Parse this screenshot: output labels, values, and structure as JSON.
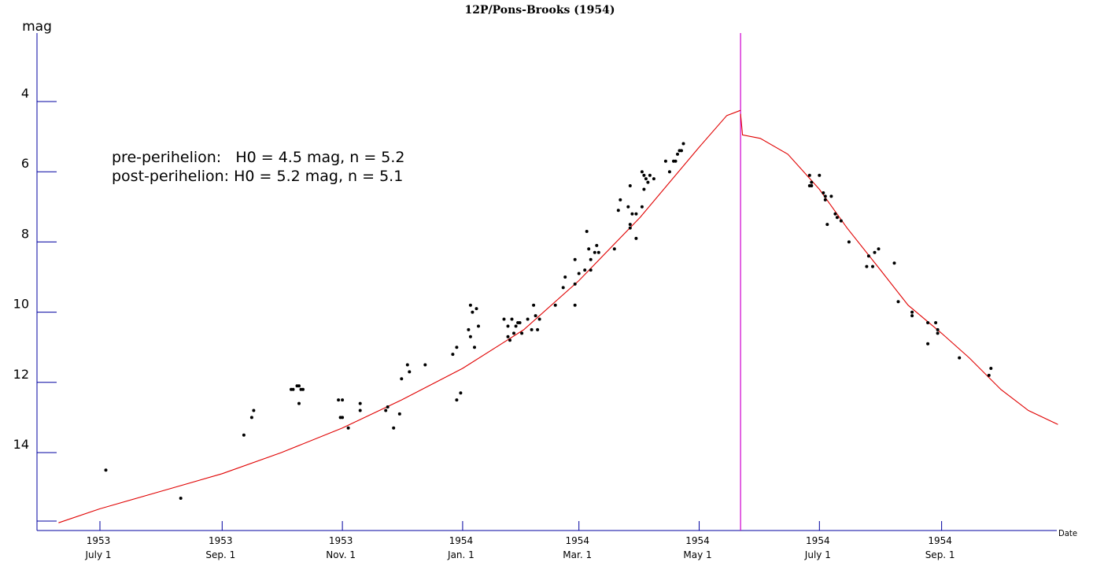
{
  "chart_data": {
    "type": "scatter",
    "title": "12P/Pons-Brooks (1954)",
    "ylabel": "mag",
    "xlabel": "Date",
    "y_inverted": true,
    "ylim": [
      2.0,
      16.2
    ],
    "y_ticks": [
      {
        "value": 4,
        "label": "4"
      },
      {
        "value": 6,
        "label": "6"
      },
      {
        "value": 8,
        "label": "8"
      },
      {
        "value": 10,
        "label": "10"
      },
      {
        "value": 12,
        "label": "12"
      },
      {
        "value": 14,
        "label": "14"
      }
    ],
    "x_range": [
      "1953-06-01",
      "1954-10-31"
    ],
    "x_ticks": [
      {
        "date": "1953-07-01",
        "year": "1953",
        "label": "July 1"
      },
      {
        "date": "1953-09-01",
        "year": "1953",
        "label": "Sep. 1"
      },
      {
        "date": "1953-11-01",
        "year": "1953",
        "label": "Nov. 1"
      },
      {
        "date": "1954-01-01",
        "year": "1954",
        "label": "Jan. 1"
      },
      {
        "date": "1954-03-01",
        "year": "1954",
        "label": "Mar. 1"
      },
      {
        "date": "1954-05-01",
        "year": "1954",
        "label": "May 1"
      },
      {
        "date": "1954-07-01",
        "year": "1954",
        "label": "July 1"
      },
      {
        "date": "1954-09-01",
        "year": "1954",
        "label": "Sep. 1"
      }
    ],
    "annotations": [
      "pre-perihelion:   H0 = 4.5 mag, n = 5.2",
      "post-perihelion: H0 = 5.2 mag, n = 5.1"
    ],
    "perihelion_date": "1954-05-22",
    "colors": {
      "observations": "#000000",
      "model": "#e00000",
      "perihelion": "#d000d0",
      "axes": "#0000a0"
    },
    "series": [
      {
        "type": "scatter",
        "points": [
          [
            "1953-07-04",
            14.5
          ],
          [
            "1953-08-11",
            15.3
          ],
          [
            "1953-09-12",
            13.5
          ],
          [
            "1953-09-16",
            13.0
          ],
          [
            "1953-09-17",
            12.8
          ],
          [
            "1953-10-06",
            12.2
          ],
          [
            "1953-10-07",
            12.2
          ],
          [
            "1953-10-09",
            12.1
          ],
          [
            "1953-10-10",
            12.1
          ],
          [
            "1953-10-10",
            12.6
          ],
          [
            "1953-10-11",
            12.2
          ],
          [
            "1953-10-12",
            12.2
          ],
          [
            "1953-10-30",
            12.5
          ],
          [
            "1953-10-31",
            13.0
          ],
          [
            "1953-11-01",
            12.5
          ],
          [
            "1953-11-01",
            13.0
          ],
          [
            "1953-11-04",
            13.3
          ],
          [
            "1953-11-10",
            12.8
          ],
          [
            "1953-11-10",
            12.6
          ],
          [
            "1953-11-23",
            12.8
          ],
          [
            "1953-11-24",
            12.7
          ],
          [
            "1953-11-27",
            13.3
          ],
          [
            "1953-11-30",
            12.9
          ],
          [
            "1953-12-01",
            11.9
          ],
          [
            "1953-12-04",
            11.5
          ],
          [
            "1953-12-05",
            11.7
          ],
          [
            "1953-12-13",
            11.5
          ],
          [
            "1953-12-27",
            11.2
          ],
          [
            "1953-12-29",
            11.0
          ],
          [
            "1953-12-29",
            12.5
          ],
          [
            "1953-12-31",
            12.3
          ],
          [
            "1954-01-04",
            10.5
          ],
          [
            "1954-01-05",
            10.7
          ],
          [
            "1954-01-05",
            9.8
          ],
          [
            "1954-01-06",
            10.0
          ],
          [
            "1954-01-07",
            11.0
          ],
          [
            "1954-01-08",
            9.9
          ],
          [
            "1954-01-09",
            10.4
          ],
          [
            "1954-01-22",
            10.2
          ],
          [
            "1954-01-24",
            10.7
          ],
          [
            "1954-01-24",
            10.4
          ],
          [
            "1954-01-25",
            10.8
          ],
          [
            "1954-01-26",
            10.2
          ],
          [
            "1954-01-27",
            10.6
          ],
          [
            "1954-01-28",
            10.4
          ],
          [
            "1954-01-29",
            10.3
          ],
          [
            "1954-01-30",
            10.3
          ],
          [
            "1954-01-31",
            10.6
          ],
          [
            "1954-02-03",
            10.2
          ],
          [
            "1954-02-05",
            10.5
          ],
          [
            "1954-02-06",
            9.8
          ],
          [
            "1954-02-07",
            10.1
          ],
          [
            "1954-02-08",
            10.5
          ],
          [
            "1954-02-09",
            10.2
          ],
          [
            "1954-02-17",
            9.8
          ],
          [
            "1954-02-21",
            9.3
          ],
          [
            "1954-02-22",
            9.0
          ],
          [
            "1954-02-27",
            9.8
          ],
          [
            "1954-02-27",
            8.5
          ],
          [
            "1954-02-27",
            9.2
          ],
          [
            "1954-03-01",
            8.9
          ],
          [
            "1954-03-04",
            8.8
          ],
          [
            "1954-03-05",
            7.7
          ],
          [
            "1954-03-06",
            8.2
          ],
          [
            "1954-03-07",
            8.5
          ],
          [
            "1954-03-07",
            8.8
          ],
          [
            "1954-03-09",
            8.3
          ],
          [
            "1954-03-10",
            8.1
          ],
          [
            "1954-03-11",
            8.3
          ],
          [
            "1954-03-19",
            8.2
          ],
          [
            "1954-03-21",
            7.1
          ],
          [
            "1954-03-22",
            6.8
          ],
          [
            "1954-03-26",
            7.0
          ],
          [
            "1954-03-27",
            7.5
          ],
          [
            "1954-03-27",
            7.6
          ],
          [
            "1954-03-27",
            6.4
          ],
          [
            "1954-03-28",
            7.2
          ],
          [
            "1954-03-30",
            7.9
          ],
          [
            "1954-03-30",
            7.2
          ],
          [
            "1954-04-02",
            7.0
          ],
          [
            "1954-04-02",
            6.0
          ],
          [
            "1954-04-03",
            6.1
          ],
          [
            "1954-04-03",
            6.5
          ],
          [
            "1954-04-04",
            6.2
          ],
          [
            "1954-04-05",
            6.3
          ],
          [
            "1954-04-06",
            6.1
          ],
          [
            "1954-04-08",
            6.2
          ],
          [
            "1954-04-14",
            5.7
          ],
          [
            "1954-04-16",
            6.0
          ],
          [
            "1954-04-18",
            5.7
          ],
          [
            "1954-04-19",
            5.7
          ],
          [
            "1954-04-20",
            5.5
          ],
          [
            "1954-04-21",
            5.4
          ],
          [
            "1954-04-22",
            5.4
          ],
          [
            "1954-04-23",
            5.2
          ],
          [
            "1954-06-26",
            6.1
          ],
          [
            "1954-06-26",
            6.4
          ],
          [
            "1954-06-27",
            6.3
          ],
          [
            "1954-06-27",
            6.4
          ],
          [
            "1954-07-01",
            6.1
          ],
          [
            "1954-07-03",
            6.6
          ],
          [
            "1954-07-04",
            6.8
          ],
          [
            "1954-07-04",
            6.7
          ],
          [
            "1954-07-05",
            7.5
          ],
          [
            "1954-07-07",
            6.7
          ],
          [
            "1954-07-09",
            7.2
          ],
          [
            "1954-07-10",
            7.3
          ],
          [
            "1954-07-12",
            7.4
          ],
          [
            "1954-07-16",
            8.0
          ],
          [
            "1954-07-25",
            8.7
          ],
          [
            "1954-07-26",
            8.4
          ],
          [
            "1954-07-28",
            8.7
          ],
          [
            "1954-07-29",
            8.3
          ],
          [
            "1954-07-31",
            8.2
          ],
          [
            "1954-08-08",
            8.6
          ],
          [
            "1954-08-10",
            9.7
          ],
          [
            "1954-08-17",
            10.0
          ],
          [
            "1954-08-17",
            10.1
          ],
          [
            "1954-08-25",
            10.3
          ],
          [
            "1954-08-25",
            10.9
          ],
          [
            "1954-08-29",
            10.3
          ],
          [
            "1954-08-30",
            10.5
          ],
          [
            "1954-08-30",
            10.6
          ],
          [
            "1954-09-10",
            11.3
          ],
          [
            "1954-09-25",
            11.8
          ],
          [
            "1954-09-26",
            11.6
          ]
        ]
      },
      {
        "type": "line",
        "name": "pre-perihelion model",
        "points": [
          [
            "1953-06-10",
            16.0
          ],
          [
            "1953-07-01",
            15.6
          ],
          [
            "1953-08-01",
            15.1
          ],
          [
            "1953-09-01",
            14.6
          ],
          [
            "1953-10-01",
            14.0
          ],
          [
            "1953-11-01",
            13.3
          ],
          [
            "1953-12-01",
            12.5
          ],
          [
            "1954-01-01",
            11.6
          ],
          [
            "1954-02-01",
            10.5
          ],
          [
            "1954-03-01",
            9.1
          ],
          [
            "1954-04-01",
            7.3
          ],
          [
            "1954-05-01",
            5.3
          ],
          [
            "1954-05-15",
            4.4
          ],
          [
            "1954-05-22",
            4.25
          ]
        ]
      },
      {
        "type": "line",
        "name": "post-perihelion model",
        "points": [
          [
            "1954-05-22",
            4.35
          ],
          [
            "1954-05-23",
            4.95
          ],
          [
            "1954-06-01",
            5.05
          ],
          [
            "1954-06-15",
            5.5
          ],
          [
            "1954-07-01",
            6.5
          ],
          [
            "1954-07-15",
            7.6
          ],
          [
            "1954-08-01",
            8.8
          ],
          [
            "1954-08-15",
            9.8
          ],
          [
            "1954-09-01",
            10.6
          ],
          [
            "1954-09-15",
            11.3
          ],
          [
            "1954-10-01",
            12.2
          ],
          [
            "1954-10-15",
            12.8
          ],
          [
            "1954-10-30",
            13.2
          ]
        ]
      }
    ]
  }
}
